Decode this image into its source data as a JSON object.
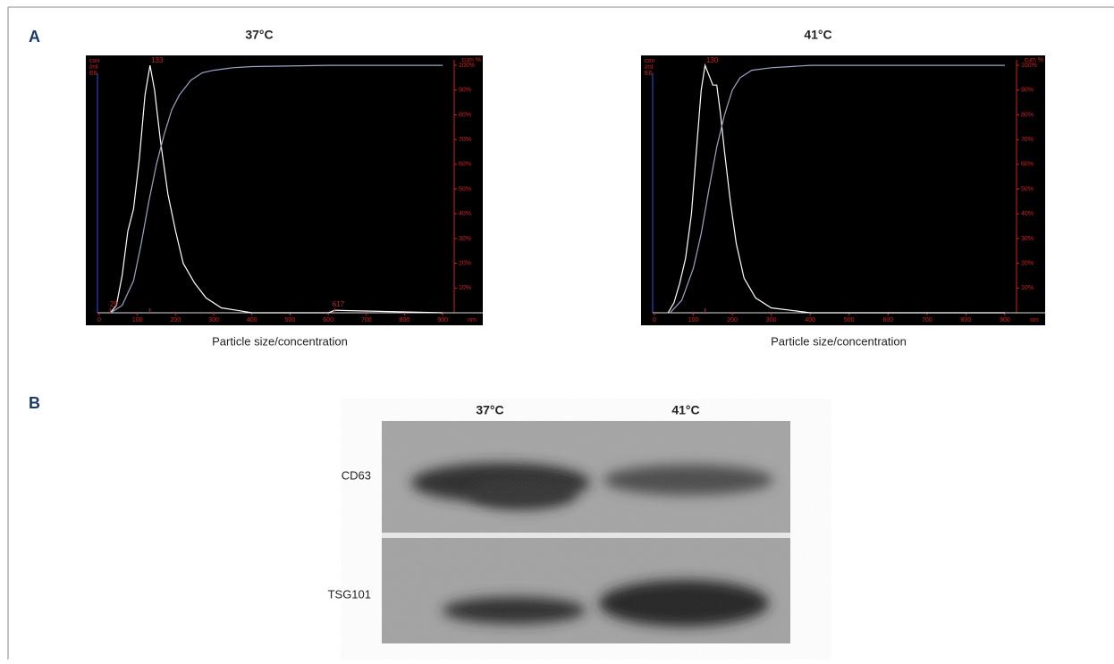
{
  "panels": {
    "a": "A",
    "b": "B"
  },
  "chart_data": [
    {
      "type": "line",
      "title": "37°C",
      "x_label": "Particle size/concentration",
      "x_unit": "nm",
      "y_label": [
        "con",
        "/ml",
        "E6"
      ],
      "y2_label": "cum %",
      "xlim": [
        0,
        930
      ],
      "xticks": [
        0,
        100,
        200,
        300,
        400,
        500,
        600,
        700,
        800,
        900
      ],
      "y2lim": [
        0,
        104
      ],
      "y2ticks": [
        {
          "value": 10,
          "label": "10%"
        },
        {
          "value": 20,
          "label": "20%"
        },
        {
          "value": 30,
          "label": "30%"
        },
        {
          "value": 40,
          "label": "40%"
        },
        {
          "value": 50,
          "label": "50%"
        },
        {
          "value": 60,
          "label": "60%"
        },
        {
          "value": 70,
          "label": "70%"
        },
        {
          "value": 80,
          "label": "80%"
        },
        {
          "value": 90,
          "label": "90%"
        },
        {
          "value": 100,
          "label": "100%"
        }
      ],
      "peak": 133,
      "size_markers": [
        29,
        617
      ],
      "series": [
        {
          "color": "#ffffff",
          "axis": "y2",
          "x": [
            29,
            45,
            60,
            75,
            90,
            105,
            120,
            133,
            145,
            160,
            180,
            200,
            220,
            250,
            280,
            320,
            360,
            400,
            600,
            617,
            900
          ],
          "values": [
            0,
            3,
            15,
            33,
            42,
            62,
            88,
            100,
            90,
            70,
            48,
            33,
            20,
            12,
            6,
            2,
            1,
            0,
            0,
            1,
            0
          ]
        },
        {
          "color": "#9aa6c4",
          "axis": "y2",
          "x": [
            30,
            60,
            90,
            110,
            130,
            150,
            170,
            190,
            210,
            240,
            270,
            300,
            350,
            400,
            600,
            900
          ],
          "values": [
            0,
            3,
            13,
            28,
            45,
            60,
            72,
            82,
            88,
            94,
            97,
            98,
            99,
            99.5,
            100,
            100
          ]
        }
      ]
    },
    {
      "type": "line",
      "title": "41°C",
      "x_label": "Particle size/concentration",
      "x_unit": "nm",
      "y_label": [
        "con",
        "/ml",
        "E6"
      ],
      "y2_label": "cum %",
      "xlim": [
        0,
        930
      ],
      "xticks": [
        0,
        100,
        200,
        300,
        400,
        500,
        600,
        700,
        800,
        900
      ],
      "y2lim": [
        0,
        104
      ],
      "y2ticks": [
        {
          "value": 10,
          "label": "10%"
        },
        {
          "value": 20,
          "label": "20%"
        },
        {
          "value": 30,
          "label": "30%"
        },
        {
          "value": 40,
          "label": "40%"
        },
        {
          "value": 50,
          "label": "50%"
        },
        {
          "value": 60,
          "label": "60%"
        },
        {
          "value": 70,
          "label": "70%"
        },
        {
          "value": 80,
          "label": "80%"
        },
        {
          "value": 90,
          "label": "90%"
        },
        {
          "value": 100,
          "label": "100%"
        }
      ],
      "peak": 130,
      "series": [
        {
          "color": "#ffffff",
          "axis": "y2",
          "x": [
            35,
            50,
            65,
            80,
            95,
            110,
            120,
            130,
            140,
            150,
            160,
            170,
            180,
            195,
            210,
            230,
            260,
            300,
            350,
            400,
            900
          ],
          "values": [
            0,
            4,
            12,
            22,
            40,
            70,
            90,
            100,
            96,
            92,
            92,
            80,
            65,
            45,
            28,
            14,
            6,
            2,
            1,
            0,
            0
          ]
        },
        {
          "color": "#9aa6c4",
          "axis": "y2",
          "x": [
            40,
            70,
            100,
            120,
            140,
            160,
            180,
            200,
            220,
            250,
            300,
            350,
            400,
            900
          ],
          "values": [
            0,
            5,
            18,
            32,
            50,
            67,
            80,
            90,
            95,
            98,
            99,
            99.5,
            100,
            100
          ]
        }
      ]
    }
  ],
  "blot": {
    "columns": [
      "37°C",
      "41°C"
    ],
    "rows": [
      "CD63",
      "TSG101"
    ]
  }
}
